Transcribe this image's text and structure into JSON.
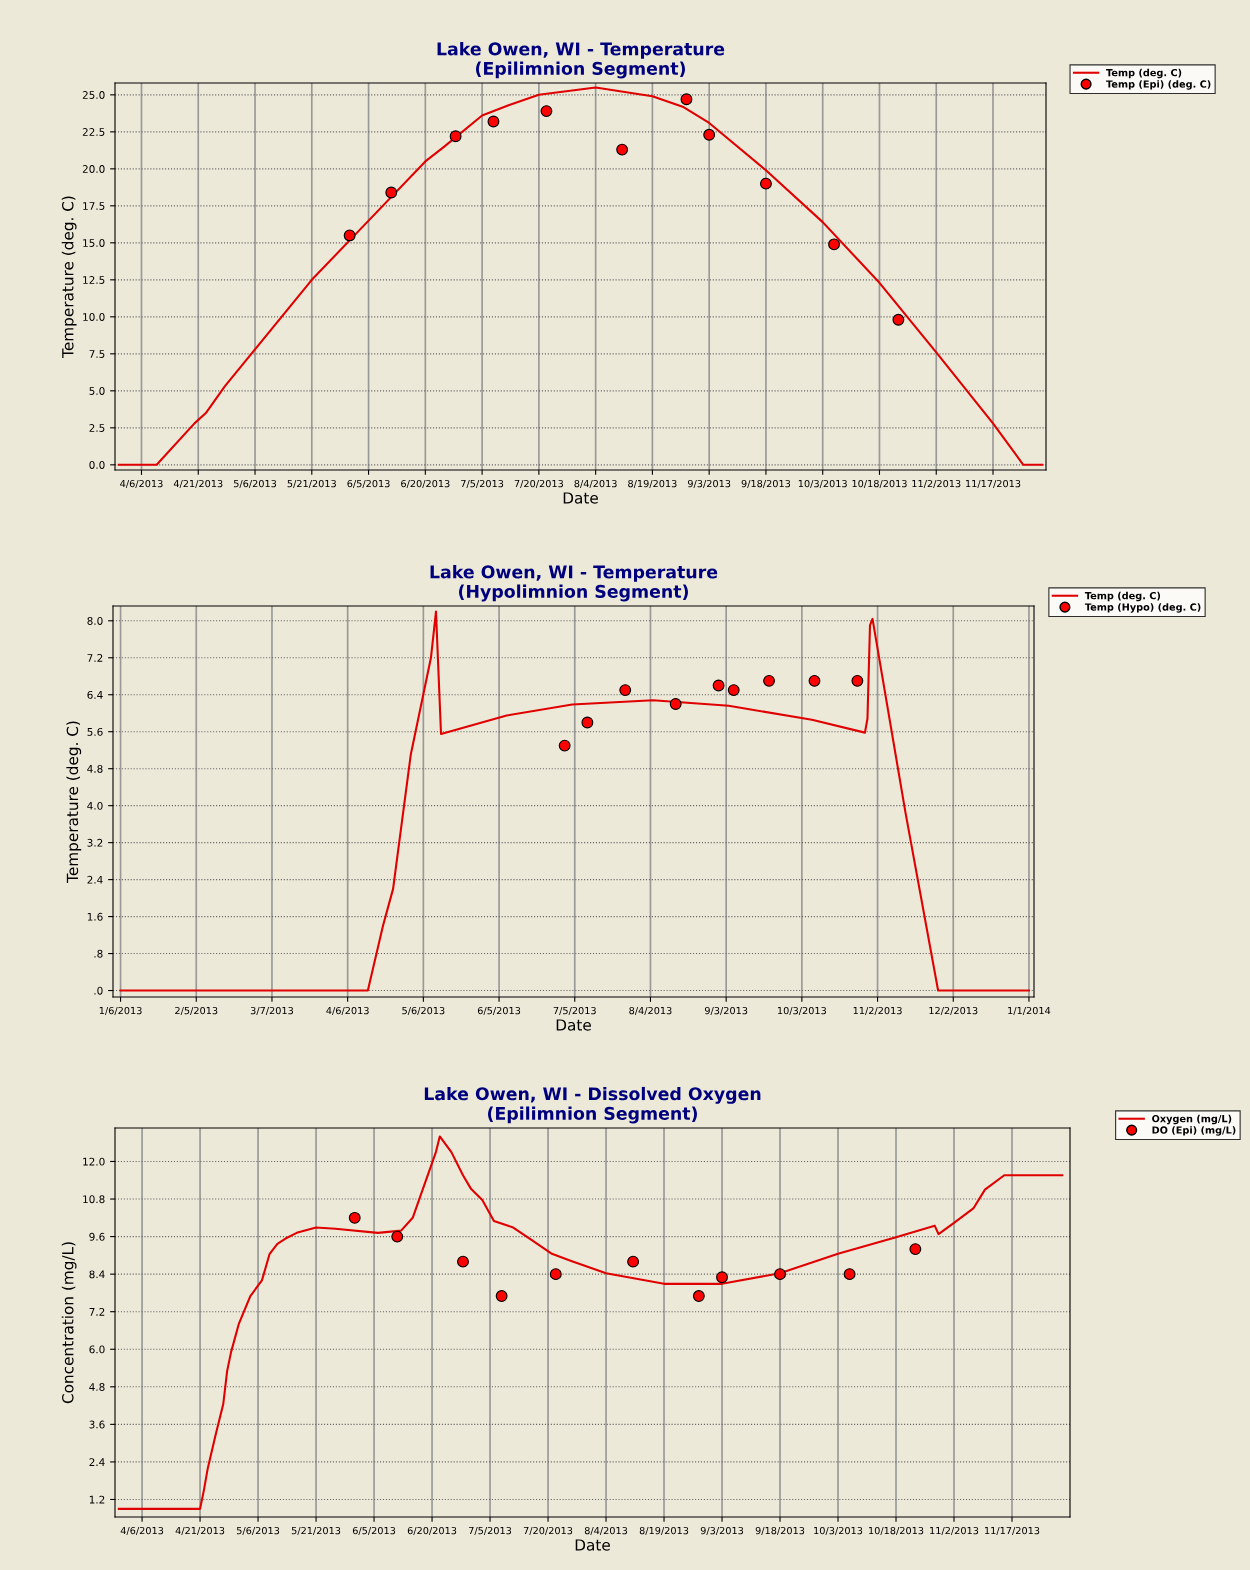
{
  "chart_data": [
    {
      "type": "line",
      "title": "Lake Owen, WI - Temperature\n(Epilimnion Segment)",
      "xlabel": "Date",
      "ylabel": "Temperature (deg. C)",
      "grid": true,
      "legend": "top right",
      "xlim": [
        "2013-03-30",
        "2013-12-01"
      ],
      "xticks": [
        {
          "value": "2013-04-06",
          "label": "4/6/2013"
        },
        {
          "value": "2013-04-21",
          "label": "4/21/2013"
        },
        {
          "value": "2013-05-06",
          "label": "5/6/2013"
        },
        {
          "value": "2013-05-21",
          "label": "5/21/2013"
        },
        {
          "value": "2013-06-05",
          "label": "6/5/2013"
        },
        {
          "value": "2013-06-20",
          "label": "6/20/2013"
        },
        {
          "value": "2013-07-05",
          "label": "7/5/2013"
        },
        {
          "value": "2013-07-20",
          "label": "7/20/2013"
        },
        {
          "value": "2013-08-04",
          "label": "8/4/2013"
        },
        {
          "value": "2013-08-19",
          "label": "8/19/2013"
        },
        {
          "value": "2013-09-03",
          "label": "9/3/2013"
        },
        {
          "value": "2013-09-18",
          "label": "9/18/2013"
        },
        {
          "value": "2013-10-03",
          "label": "10/3/2013"
        },
        {
          "value": "2013-10-18",
          "label": "10/18/2013"
        },
        {
          "value": "2013-11-02",
          "label": "11/2/2013"
        },
        {
          "value": "2013-11-17",
          "label": "11/17/2013"
        }
      ],
      "ylim": [
        -0.35,
        25.8
      ],
      "yticks": [
        {
          "value": 0,
          "label": "0.0"
        },
        {
          "value": 2.5,
          "label": "2.5"
        },
        {
          "value": 5,
          "label": "5.0"
        },
        {
          "value": 7.5,
          "label": "7.5"
        },
        {
          "value": 10,
          "label": "10.0"
        },
        {
          "value": 12.5,
          "label": "12.5"
        },
        {
          "value": 15,
          "label": "15.0"
        },
        {
          "value": 17.5,
          "label": "17.5"
        },
        {
          "value": 20,
          "label": "20.0"
        },
        {
          "value": 22.5,
          "label": "22.5"
        },
        {
          "value": 25,
          "label": "25.0"
        }
      ],
      "series": [
        {
          "name": "Temp (deg. C)",
          "marker": "none",
          "color": "#e00000",
          "x": [
            "2013-03-31",
            "2013-04-10",
            "2013-04-20",
            "2013-04-23",
            "2013-04-28",
            "2013-05-21",
            "2013-06-05",
            "2013-06-20",
            "2013-06-25",
            "2013-07-05",
            "2013-07-12",
            "2013-07-20",
            "2013-08-04",
            "2013-08-19",
            "2013-08-27",
            "2013-09-03",
            "2013-09-18",
            "2013-10-03",
            "2013-10-18",
            "2013-11-02",
            "2013-11-17",
            "2013-11-25",
            "2013-11-30"
          ],
          "values": [
            0,
            0,
            2.8,
            3.5,
            5.3,
            12.5,
            16.5,
            20.5,
            21.5,
            23.6,
            24.3,
            25.0,
            25.5,
            24.9,
            24.2,
            23.1,
            19.9,
            16.4,
            12.3,
            7.6,
            2.8,
            0,
            0
          ]
        },
        {
          "name": "Temp (Epi) (deg. C)",
          "type": "scatter",
          "marker": "circle",
          "color": "#ff0000",
          "x": [
            "2013-05-31",
            "2013-06-11",
            "2013-06-28",
            "2013-07-08",
            "2013-07-22",
            "2013-08-11",
            "2013-08-28",
            "2013-09-03",
            "2013-09-18",
            "2013-10-06",
            "2013-10-23"
          ],
          "values": [
            15.5,
            18.4,
            22.2,
            23.2,
            23.9,
            21.3,
            24.7,
            22.3,
            19.0,
            14.9,
            9.8
          ]
        }
      ]
    },
    {
      "type": "line",
      "title": "Lake Owen, WI - Temperature\n(Hypolimnion Segment)",
      "xlabel": "Date",
      "ylabel": "Temperature (deg. C)",
      "grid": true,
      "legend": "top right",
      "xlim": [
        "2013-01-03",
        "2014-01-03"
      ],
      "xticks": [
        {
          "value": "2013-01-06",
          "label": "1/6/2013"
        },
        {
          "value": "2013-02-05",
          "label": "2/5/2013"
        },
        {
          "value": "2013-03-07",
          "label": "3/7/2013"
        },
        {
          "value": "2013-04-06",
          "label": "4/6/2013"
        },
        {
          "value": "2013-05-06",
          "label": "5/6/2013"
        },
        {
          "value": "2013-06-05",
          "label": "6/5/2013"
        },
        {
          "value": "2013-07-05",
          "label": "7/5/2013"
        },
        {
          "value": "2013-08-04",
          "label": "8/4/2013"
        },
        {
          "value": "2013-09-03",
          "label": "9/3/2013"
        },
        {
          "value": "2013-10-03",
          "label": "10/3/2013"
        },
        {
          "value": "2013-11-02",
          "label": "11/2/2013"
        },
        {
          "value": "2013-12-02",
          "label": "12/2/2013"
        },
        {
          "value": "2014-01-01",
          "label": "1/1/2014"
        }
      ],
      "ylim": [
        -0.14,
        8.32
      ],
      "yticks": [
        {
          "value": 0,
          "label": ".0"
        },
        {
          "value": 0.8,
          "label": ".8"
        },
        {
          "value": 1.6,
          "label": "1.6"
        },
        {
          "value": 2.4,
          "label": "2.4"
        },
        {
          "value": 3.2,
          "label": "3.2"
        },
        {
          "value": 4.0,
          "label": "4.0"
        },
        {
          "value": 4.8,
          "label": "4.8"
        },
        {
          "value": 5.6,
          "label": "5.6"
        },
        {
          "value": 6.4,
          "label": "6.4"
        },
        {
          "value": 7.2,
          "label": "7.2"
        },
        {
          "value": 8.0,
          "label": "8.0"
        }
      ],
      "series": [
        {
          "name": "Temp (deg. C)",
          "marker": "none",
          "color": "#e00000",
          "x": [
            "2013-01-06",
            "2013-04-14",
            "2013-04-20",
            "2013-04-24",
            "2013-05-01",
            "2013-05-09",
            "2013-05-11",
            "2013-05-13",
            "2013-06-08",
            "2013-07-04",
            "2013-08-05",
            "2013-09-04",
            "2013-10-07",
            "2013-10-28",
            "2013-10-29",
            "2013-10-30",
            "2013-10-31",
            "2013-11-13",
            "2013-11-26",
            "2014-01-01"
          ],
          "values": [
            0,
            0,
            1.4,
            2.2,
            5.1,
            7.2,
            8.2,
            5.55,
            5.95,
            6.19,
            6.28,
            6.16,
            5.86,
            5.58,
            5.88,
            7.9,
            8.04,
            3.87,
            0,
            0
          ]
        },
        {
          "name": "Temp (Hypo) (deg. C)",
          "type": "scatter",
          "marker": "circle",
          "color": "#ff0000",
          "x": [
            "2013-07-01",
            "2013-07-10",
            "2013-07-25",
            "2013-08-14",
            "2013-08-31",
            "2013-09-06",
            "2013-09-20",
            "2013-10-08",
            "2013-10-25"
          ],
          "values": [
            5.3,
            5.8,
            6.5,
            6.2,
            6.6,
            6.5,
            6.7,
            6.7,
            6.7
          ]
        }
      ]
    },
    {
      "type": "line",
      "title": "Lake Owen, WI - Dissolved Oxygen\n(Epilimnion Segment)",
      "xlabel": "Date",
      "ylabel": "Concentration (mg/L)",
      "grid": true,
      "legend": "top right",
      "xlim": [
        "2013-03-30",
        "2013-12-02"
      ],
      "xticks": [
        {
          "value": "2013-04-06",
          "label": "4/6/2013"
        },
        {
          "value": "2013-04-21",
          "label": "4/21/2013"
        },
        {
          "value": "2013-05-06",
          "label": "5/6/2013"
        },
        {
          "value": "2013-05-21",
          "label": "5/21/2013"
        },
        {
          "value": "2013-06-05",
          "label": "6/5/2013"
        },
        {
          "value": "2013-06-20",
          "label": "6/20/2013"
        },
        {
          "value": "2013-07-05",
          "label": "7/5/2013"
        },
        {
          "value": "2013-07-20",
          "label": "7/20/2013"
        },
        {
          "value": "2013-08-04",
          "label": "8/4/2013"
        },
        {
          "value": "2013-08-19",
          "label": "8/19/2013"
        },
        {
          "value": "2013-09-03",
          "label": "9/3/2013"
        },
        {
          "value": "2013-09-18",
          "label": "9/18/2013"
        },
        {
          "value": "2013-10-03",
          "label": "10/3/2013"
        },
        {
          "value": "2013-10-18",
          "label": "10/18/2013"
        },
        {
          "value": "2013-11-02",
          "label": "11/2/2013"
        },
        {
          "value": "2013-11-17",
          "label": "11/17/2013"
        }
      ],
      "ylim": [
        0.64,
        13.07
      ],
      "yticks": [
        1.2,
        2.4,
        3.6,
        4.8,
        {
          "value": 6.0,
          "label": "6.0"
        },
        7.2,
        8.4,
        9.6,
        10.8,
        {
          "value": 12.0,
          "label": "12.0"
        }
      ],
      "series": [
        {
          "name": "Oxygen (mg/L)",
          "marker": "none",
          "color": "#e00000",
          "x": [
            "2013-03-31",
            "2013-04-21",
            "2013-04-22",
            "2013-04-23",
            "2013-04-25",
            "2013-04-27",
            "2013-04-28",
            "2013-04-29",
            "2013-05-01",
            "2013-05-04",
            "2013-05-07",
            "2013-05-09",
            "2013-05-11",
            "2013-05-13",
            "2013-05-16",
            "2013-05-21",
            "2013-05-26",
            "2013-06-06",
            "2013-06-12",
            "2013-06-15",
            "2013-06-17",
            "2013-06-21",
            "2013-06-22",
            "2013-06-25",
            "2013-06-28",
            "2013-06-30",
            "2013-07-03",
            "2013-07-06",
            "2013-07-11",
            "2013-07-16",
            "2013-07-21",
            "2013-07-26",
            "2013-08-04",
            "2013-08-19",
            "2013-09-03",
            "2013-09-18",
            "2013-10-03",
            "2013-10-18",
            "2013-10-28",
            "2013-10-29",
            "2013-11-02",
            "2013-11-07",
            "2013-11-10",
            "2013-11-15",
            "2013-11-30"
          ],
          "values": [
            0.9,
            0.9,
            1.5,
            2.2,
            3.25,
            4.25,
            5.3,
            5.9,
            6.8,
            7.7,
            8.2,
            9.05,
            9.37,
            9.53,
            9.72,
            9.89,
            9.85,
            9.72,
            9.79,
            10.2,
            10.9,
            12.3,
            12.8,
            12.3,
            11.56,
            11.14,
            10.77,
            10.1,
            9.89,
            9.47,
            9.05,
            8.82,
            8.43,
            8.09,
            8.09,
            8.43,
            9.05,
            9.58,
            9.95,
            9.68,
            10.04,
            10.5,
            11.1,
            11.56,
            11.56
          ]
        },
        {
          "name": "DO (Epi) (mg/L)",
          "type": "scatter",
          "marker": "circle",
          "color": "#ff0000",
          "x": [
            "2013-05-31",
            "2013-06-11",
            "2013-06-28",
            "2013-07-08",
            "2013-07-22",
            "2013-08-11",
            "2013-08-28",
            "2013-09-03",
            "2013-09-18",
            "2013-10-06",
            "2013-10-23"
          ],
          "values": [
            10.2,
            9.6,
            8.8,
            7.7,
            8.4,
            8.8,
            7.7,
            8.3,
            8.4,
            8.4,
            9.2
          ]
        }
      ]
    }
  ]
}
